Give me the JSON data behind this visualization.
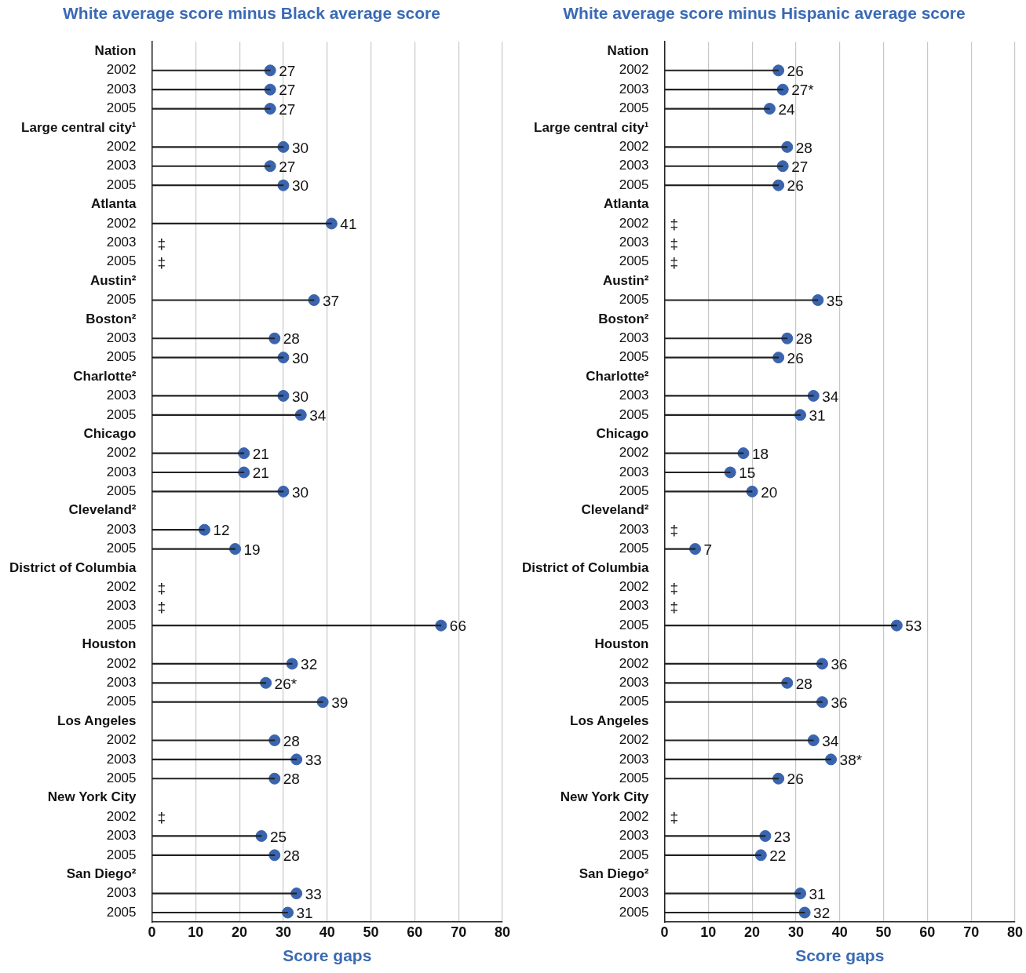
{
  "chart_data": [
    {
      "type": "lollipop",
      "orientation": "horizontal",
      "title": "White average score minus Black average score",
      "xlabel": "Score gaps",
      "categories": [
        "Nation",
        "2002",
        "2003",
        "2005",
        "Large central city¹",
        "2002",
        "2003",
        "2005",
        "Atlanta",
        "2002",
        "2003",
        "2005",
        "Austin²",
        "2005",
        "Boston²",
        "2003",
        "2005",
        "Charlotte²",
        "2003",
        "2005",
        "Chicago",
        "2002",
        "2003",
        "2005",
        "Cleveland²",
        "2003",
        "2005",
        "District of Columbia",
        "2002",
        "2003",
        "2005",
        "Houston",
        "2002",
        "2003",
        "2005",
        "Los Angeles",
        "2002",
        "2003",
        "2005",
        "New York City",
        "2002",
        "2003",
        "2005",
        "San Diego²",
        "2003",
        "2005"
      ],
      "values": [
        null,
        27,
        27,
        27,
        null,
        30,
        27,
        30,
        null,
        41,
        null,
        null,
        null,
        37,
        null,
        28,
        30,
        null,
        30,
        34,
        null,
        21,
        21,
        30,
        null,
        12,
        19,
        null,
        null,
        null,
        66,
        null,
        32,
        26,
        39,
        null,
        28,
        33,
        28,
        null,
        null,
        25,
        28,
        null,
        33,
        31
      ],
      "value_labels": [
        null,
        "27",
        "27",
        "27",
        null,
        "30",
        "27",
        "30",
        null,
        "41",
        "‡",
        "‡",
        null,
        "37",
        null,
        "28",
        "30",
        null,
        "30",
        "34",
        null,
        "21",
        "21",
        "30",
        null,
        "12",
        "19",
        null,
        "‡",
        "‡",
        "66",
        null,
        "32",
        "26*",
        "39",
        null,
        "28",
        "33",
        "28",
        null,
        "‡",
        "25",
        "28",
        null,
        "33",
        "31"
      ],
      "color": "#3a64ae",
      "marker": "circle",
      "xlim": [
        0,
        80
      ],
      "xticks": [
        0,
        10,
        20,
        30,
        40,
        50,
        60,
        70,
        80
      ],
      "grid": "x"
    },
    {
      "type": "lollipop",
      "orientation": "horizontal",
      "title": "White average score minus Hispanic average score",
      "xlabel": "Score gaps",
      "categories": [
        "Nation",
        "2002",
        "2003",
        "2005",
        "Large central city¹",
        "2002",
        "2003",
        "2005",
        "Atlanta",
        "2002",
        "2003",
        "2005",
        "Austin²",
        "2005",
        "Boston²",
        "2003",
        "2005",
        "Charlotte²",
        "2003",
        "2005",
        "Chicago",
        "2002",
        "2003",
        "2005",
        "Cleveland²",
        "2003",
        "2005",
        "District of Columbia",
        "2002",
        "2003",
        "2005",
        "Houston",
        "2002",
        "2003",
        "2005",
        "Los Angeles",
        "2002",
        "2003",
        "2005",
        "New York City",
        "2002",
        "2003",
        "2005",
        "San Diego²",
        "2003",
        "2005"
      ],
      "values": [
        null,
        26,
        27,
        24,
        null,
        28,
        27,
        26,
        null,
        null,
        null,
        null,
        null,
        35,
        null,
        28,
        26,
        null,
        34,
        31,
        null,
        18,
        15,
        20,
        null,
        null,
        7,
        null,
        null,
        null,
        53,
        null,
        36,
        28,
        36,
        null,
        34,
        38,
        26,
        null,
        null,
        23,
        22,
        null,
        31,
        32
      ],
      "value_labels": [
        null,
        "26",
        "27*",
        "24",
        null,
        "28",
        "27",
        "26",
        null,
        "‡",
        "‡",
        "‡",
        null,
        "35",
        null,
        "28",
        "26",
        null,
        "34",
        "31",
        null,
        "18",
        "15",
        "20",
        null,
        "‡",
        "7",
        null,
        "‡",
        "‡",
        "53",
        null,
        "36",
        "28",
        "36",
        null,
        "34",
        "38*",
        "26",
        null,
        "‡",
        "23",
        "22",
        null,
        "31",
        "32"
      ],
      "color": "#3a64ae",
      "marker": "circle",
      "xlim": [
        0,
        80
      ],
      "xticks": [
        0,
        10,
        20,
        30,
        40,
        50,
        60,
        70,
        80
      ],
      "grid": "x"
    }
  ]
}
